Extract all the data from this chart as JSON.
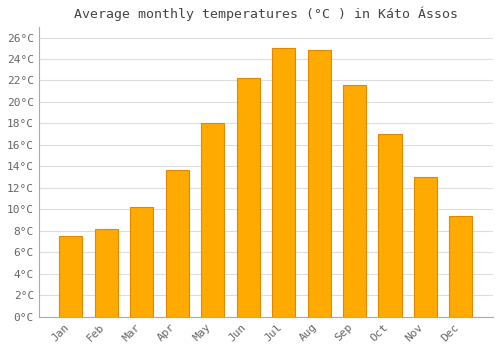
{
  "title": "Average monthly temperatures (°C ) in Káto Ássos",
  "months": [
    "Jan",
    "Feb",
    "Mar",
    "Apr",
    "May",
    "Jun",
    "Jul",
    "Aug",
    "Sep",
    "Oct",
    "Nov",
    "Dec"
  ],
  "values": [
    7.5,
    8.2,
    10.2,
    13.7,
    18.0,
    22.2,
    25.0,
    24.8,
    21.6,
    17.0,
    13.0,
    9.4
  ],
  "bar_color": "#FFAA00",
  "bar_edge_color": "#E08800",
  "background_color": "#FFFFFF",
  "grid_color": "#DDDDDD",
  "ylim": [
    0,
    27
  ],
  "ytick_step": 2,
  "title_fontsize": 9.5,
  "tick_fontsize": 8,
  "figsize": [
    5.0,
    3.5
  ],
  "dpi": 100
}
